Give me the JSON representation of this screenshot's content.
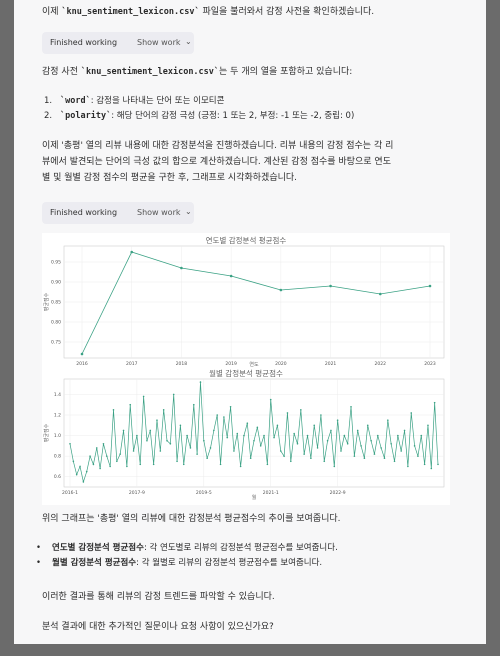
{
  "messages": {
    "top_line_pre": "이제 ",
    "top_line_code": "knu_sentiment_lexicon.csv",
    "top_line_post": " 파일을 불러와서 감정 사전을 확인하겠습니다.",
    "pill1_label": "Finished working",
    "pill1_action": "Show work",
    "lexicon_pre": "감정 사전 ",
    "lexicon_code": "knu_sentiment_lexicon.csv",
    "lexicon_post": "는 두 개의 열을 포함하고 있습니다:",
    "cols": [
      {
        "num": "1.",
        "code": "word",
        "text": ": 감정을 나타내는 단어 또는 이모티콘"
      },
      {
        "num": "2.",
        "code": "polarity",
        "text": ": 해당 단어의 감정 극성 (긍정: 1 또는 2, 부정: -1 또는 -2, 중립: 0)"
      }
    ],
    "analysis_line1": "이제 '총평' 열의 리뷰 내용에 대한 감정분석을 진행하겠습니다. 리뷰 내용의 감정 점수는 각 리",
    "analysis_line2": "뷰에서 발견되는 단어의 극성 값의 합으로 계산하겠습니다. 계산된 감정 점수를 바탕으로 연도",
    "analysis_line3": "별 및 월별 감정 점수의 평균을 구한 후, 그래프로 시각화하겠습니다.",
    "pill2_label": "Finished working",
    "pill2_action": "Show work",
    "graph_desc": "위의 그래프는 '총평' 열의 리뷰에 대한 감정분석 평균점수의 추이를 보여줍니다.",
    "bullets": [
      {
        "bold": "연도별 감정분석 평균점수",
        "text": ": 각 연도별로 리뷰의 감정분석 평균점수를 보여줍니다."
      },
      {
        "bold": "월별 감정분석 평균점수",
        "text": ": 각 월별로 리뷰의 감정분석 평균점수를 보여줍니다."
      }
    ],
    "trend_line": "이러한 결과를 통해 리뷰의 감정 트렌드를 파악할 수 있습니다.",
    "question_line": "분석 결과에 대한 추가적인 질문이나 요청 사항이 있으신가요?"
  },
  "chart_data": [
    {
      "type": "line",
      "title": "연도별 감정분석 평균점수",
      "xlabel": "연도",
      "ylabel": "평균점수",
      "x": [
        "2016",
        "2017",
        "2018",
        "2019",
        "2020",
        "2021",
        "2022",
        "2023"
      ],
      "values": [
        0.72,
        0.975,
        0.935,
        0.915,
        0.88,
        0.89,
        0.87,
        0.89
      ],
      "yticks": [
        0.75,
        0.8,
        0.85,
        0.9,
        0.95
      ],
      "ylim": [
        0.71,
        0.99
      ],
      "grid": true,
      "color": "#3aa184"
    },
    {
      "type": "line",
      "title": "월별 감정분석 평균점수",
      "xlabel": "월",
      "ylabel": "평균점수",
      "xticks": [
        "2016-1",
        "2017-9",
        "2019-5",
        "2021-1",
        "2022-9"
      ],
      "yticks": [
        0.6,
        0.8,
        1.0,
        1.2,
        1.4
      ],
      "ylim": [
        0.5,
        1.55
      ],
      "grid": true,
      "color": "#3aa184",
      "values": [
        0.92,
        0.75,
        0.62,
        0.7,
        0.55,
        0.65,
        0.8,
        0.72,
        0.88,
        0.68,
        0.92,
        0.8,
        0.7,
        1.25,
        0.75,
        0.82,
        1.05,
        0.7,
        1.3,
        0.85,
        1.0,
        0.72,
        1.38,
        0.95,
        1.05,
        0.72,
        1.15,
        0.85,
        1.25,
        0.95,
        0.92,
        1.4,
        0.75,
        1.1,
        0.72,
        1.0,
        0.88,
        1.3,
        0.82,
        1.52,
        0.95,
        0.78,
        0.88,
        1.05,
        1.2,
        0.72,
        1.18,
        0.98,
        1.28,
        0.85,
        1.02,
        0.7,
        1.0,
        1.12,
        0.78,
        0.95,
        1.08,
        0.9,
        1.0,
        0.72,
        1.35,
        0.98,
        1.1,
        0.85,
        0.8,
        1.22,
        0.75,
        1.02,
        0.92,
        1.25,
        0.82,
        1.0,
        0.78,
        1.1,
        0.88,
        1.2,
        0.75,
        0.95,
        1.05,
        0.7,
        1.15,
        0.85,
        1.0,
        0.92,
        1.28,
        0.8,
        1.05,
        0.9,
        0.78,
        1.1,
        0.95,
        0.82,
        1.0,
        0.88,
        0.78,
        1.15,
        0.92,
        0.75,
        1.0,
        0.85,
        1.05,
        0.7,
        1.22,
        0.9,
        0.8,
        1.0,
        0.72,
        1.1,
        0.68,
        1.32,
        0.72
      ]
    }
  ]
}
